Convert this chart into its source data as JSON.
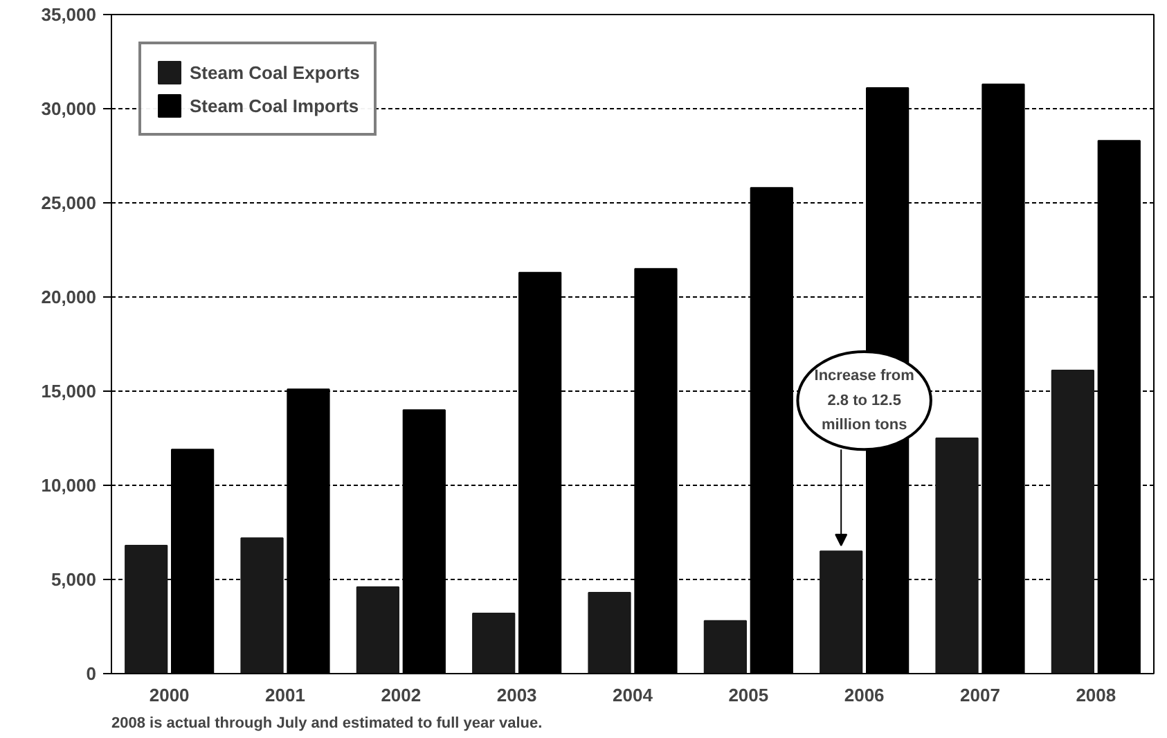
{
  "chart_data": {
    "type": "bar",
    "categories": [
      "2000",
      "2001",
      "2002",
      "2003",
      "2004",
      "2005",
      "2006",
      "2007",
      "2008"
    ],
    "series": [
      {
        "name": "Steam Coal Exports",
        "color": "#1a1a1a",
        "values": [
          6800,
          7200,
          4600,
          3200,
          4300,
          2800,
          6500,
          12500,
          16100
        ]
      },
      {
        "name": "Steam Coal Imports",
        "color": "#000000",
        "values": [
          11900,
          15100,
          14000,
          21300,
          21500,
          25800,
          31100,
          31300,
          28300
        ]
      }
    ],
    "ylim": [
      0,
      35000
    ],
    "yticks": [
      {
        "value": 0,
        "label": "0"
      },
      {
        "value": 5000,
        "label": "5,000"
      },
      {
        "value": 10000,
        "label": "10,000"
      },
      {
        "value": 15000,
        "label": "15,000"
      },
      {
        "value": 20000,
        "label": "20,000"
      },
      {
        "value": 25000,
        "label": "25,000"
      },
      {
        "value": 30000,
        "label": "30,000"
      },
      {
        "value": 35000,
        "label": "35,000"
      }
    ],
    "grid": "y",
    "legend": "top left",
    "annotations": [
      {
        "text": "Increase from\n2.8 to 12.5\nmillion tons",
        "x": "2006",
        "y": 14500
      },
      "2008 is actual through July and estimated to full year value."
    ]
  }
}
